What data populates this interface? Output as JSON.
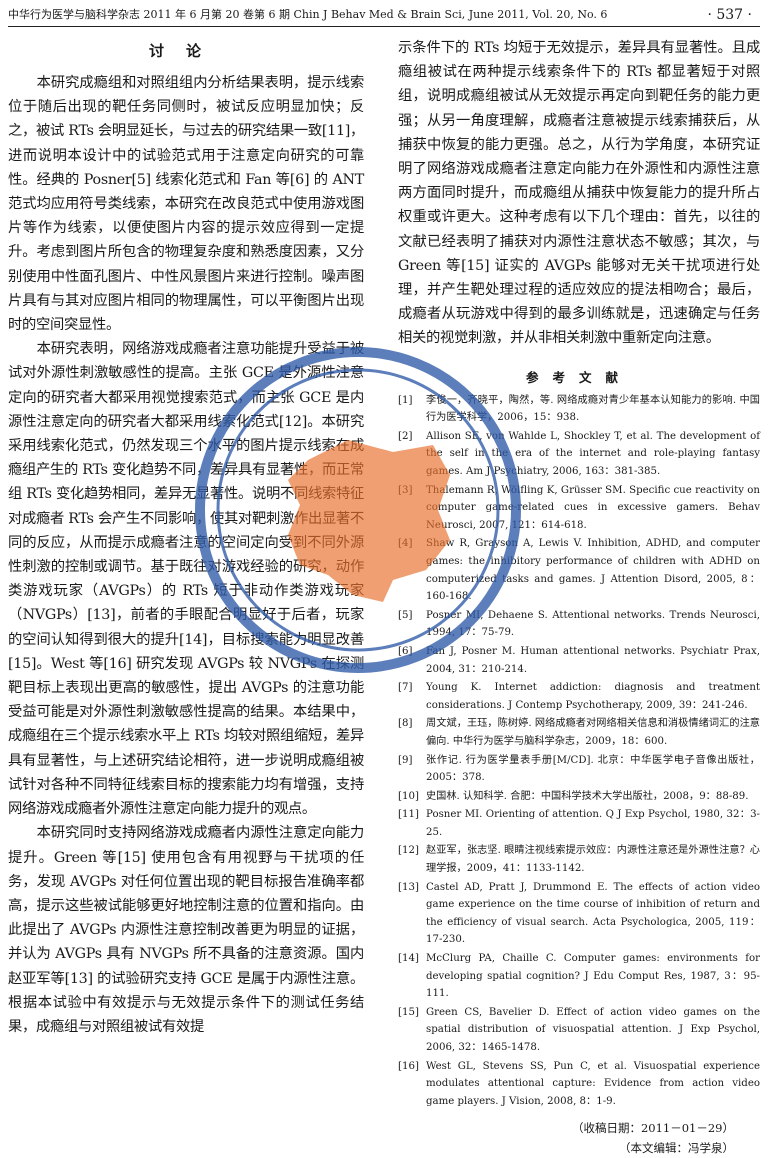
{
  "header": {
    "journal_line": "中华行为医学与脑科学杂志 2011 年 6 月第 20 卷第 6 期   Chin J Behav Med & Brain Sci, June 2011, Vol. 20, No. 6",
    "page_number": "· 537 ·"
  },
  "discussion": {
    "title": "讨论",
    "left_paragraphs": [
      "本研究成瘾组和对照组组内分析结果表明，提示线索位于随后出现的靶任务同侧时，被试反应明显加快；反之，被试 RTs 会明显延长，与过去的研究结果一致[11]，进而说明本设计中的试验范式用于注意定向研究的可靠性。经典的 Posner[5] 线索化范式和 Fan 等[6] 的 ANT 范式均应用符号类线索，本研究在改良范式中使用游戏图片等作为线索，以便使图片内容的提示效应得到一定提升。考虑到图片所包含的物理复杂度和熟悉度因素，又分别使用中性面孔图片、中性风景图片来进行控制。噪声图片具有与其对应图片相同的物理属性，可以平衡图片出现时的空间突显性。",
      "本研究表明，网络游戏成瘾者注意功能提升受益于被试对外源性刺激敏感性的提高。主张 GCE 是外源性注意定向的研究者大都采用视觉搜索范式，而主张 GCE 是内源性注意定向的研究者大都采用线索化范式[12]。本研究采用线索化范式，仍然发现三个水平的图片提示线索在成瘾组产生的 RTs 变化趋势不同，差异具有显著性，而正常组 RTs 变化趋势相同，差异无显著性。说明不同线索特征对成瘾者 RTs 会产生不同影响，使其对靶刺激作出显著不同的反应，从而提示成瘾者注意的空间定向受到不同外源性刺激的控制或调节。基于既往对游戏经验的研究，动作类游戏玩家（AVGPs）的 RTs 短于非动作类游戏玩家（NVGPs）[13]，前者的手眼配合明显好于后者，玩家的空间认知得到很大的提升[14]，目标搜索能力明显改善[15]。West 等[16] 研究发现 AVGPs 较 NVGPs 在探测靶目标上表现出更高的敏感性，提出 AVGPs 的注意功能受益可能是对外源性刺激敏感性提高的结果。本结果中，成瘾组在三个提示线索水平上 RTs 均较对照组缩短，差异具有显著性，与上述研究结论相符，进一步说明成瘾组被试针对各种不同特征线索目标的搜索能力均有增强，支持网络游戏成瘾者外源性注意定向能力提升的观点。",
      "本研究同时支持网络游戏成瘾者内源性注意定向能力提升。Green 等[15] 使用包含有用视野与干扰项的任务，发现 AVGPs 对任何位置出现的靶目标报告准确率都高，提示这些被试能够更好地控制注意的位置和指向。由此提出了 AVGPs 内源性注意控制改善更为明显的证据，并认为 AVGPs 具有 NVGPs 所不具备的注意资源。国内赵亚军等[13] 的试验研究支持 GCE 是属于内源性注意。根据本试验中有效提示与无效提示条件下的测试任务结果，成瘾组与对照组被试有效提"
    ],
    "right_paragraph": "示条件下的 RTs 均短于无效提示，差异具有显著性。且成瘾组被试在两种提示线索条件下的 RTs 都显著短于对照组，说明成瘾组被试从无效提示再定向到靶任务的能力更强；从另一角度理解，成瘾者注意被提示线索捕获后，从捕获中恢复的能力更强。总之，从行为学角度，本研究证明了网络游戏成瘾者注意定向能力在外源性和内源性注意两方面同时提升，而成瘾组从捕获中恢复能力的提升所占权重或许更大。这种考虑有以下几个理由：首先，以往的文献已经表明了捕获对内源性注意状态不敏感；其次，与 Green 等[15] 证实的 AVGPs 能够对无关干扰项进行处理，并产生靶处理过程的适应效应的提法相吻合；最后，成瘾者从玩游戏中得到的最多训练就是，迅速确定与任务相关的视觉刺激，并从非相关刺激中重新定向注意。"
  },
  "references": {
    "title": "参考文献",
    "items": [
      {
        "num": "[1]",
        "text": "李俊一，齐晓平，陶然，等. 网络成瘾对青少年基本认知能力的影响. 中国行为医学科学，2006，15：938."
      },
      {
        "num": "[2]",
        "text": "Allison SE, von Wahlde L, Shockley T, et al. The development of the self in the era of the internet and role-playing fantasy games. Am J Psychiatry, 2006, 163：381-385."
      },
      {
        "num": "[3]",
        "text": "Thalemann R, Wölfling K, Grüsser SM. Specific cue reactivity on computer game-related cues in excessive gamers. Behav Neurosci, 2007, 121：614-618."
      },
      {
        "num": "[4]",
        "text": "Shaw R, Grayson A, Lewis V. Inhibition, ADHD, and computer games: the inhibitory performance of children with ADHD on computerized tasks and games. J Attention Disord, 2005, 8：160-168."
      },
      {
        "num": "[5]",
        "text": "Posner MI, Dehaene S. Attentional networks. Trends Neurosci, 1994, 17：75-79."
      },
      {
        "num": "[6]",
        "text": "Fan J, Posner M. Human attentional networks. Psychiatr Prax, 2004, 31：210-214."
      },
      {
        "num": "[7]",
        "text": "Young K. Internet addiction: diagnosis and treatment considerations. J Contemp Psychotherapy, 2009, 39：241-246."
      },
      {
        "num": "[8]",
        "text": "周文斌，王珏，陈树婷. 网络成瘾者对网络相关信息和消极情绪词汇的注意偏向. 中华行为医学与脑科学杂志，2009，18：600."
      },
      {
        "num": "[9]",
        "text": "张作记. 行为医学量表手册[M/CD]. 北京：中华医学电子音像出版社，2005：378."
      },
      {
        "num": "[10]",
        "text": "史国林. 认知科学. 合肥：中国科学技术大学出版社，2008，9：88-89."
      },
      {
        "num": "[11]",
        "text": "Posner MI. Orienting of attention. Q J Exp Psychol, 1980, 32：3-25."
      },
      {
        "num": "[12]",
        "text": "赵亚军，张志坚. 眼睛注视线索提示效应：内源性注意还是外源性注意？心理学报，2009，41：1133-1142."
      },
      {
        "num": "[13]",
        "text": "Castel AD, Pratt J, Drummond E. The effects of action video game experience on the time course of inhibition of return and the efficiency of visual search. Acta Psychologica, 2005, 119：17-230."
      },
      {
        "num": "[14]",
        "text": "McClurg PA, Chaille C. Computer games: environments for developing spatial cognition? J Edu Comput Res, 1987, 3：95-111."
      },
      {
        "num": "[15]",
        "text": "Green CS, Bavelier D. Effect of action video games on the spatial distribution of visuospatial attention. J Exp Psychol, 2006, 32：1465-1478."
      },
      {
        "num": "[16]",
        "text": "West GL, Stevens SS, Pun C, et al. Visuospatial experience modulates attentional capture: Evidence from action video game players. J Vision, 2008, 8：1-9."
      }
    ]
  },
  "footer": {
    "received": "（收稿日期：2011－01－29）",
    "editor": "（本文编辑：冯学泉）"
  },
  "seal": {
    "outer_color": "#2f5aa8",
    "map_color": "#e8702a",
    "glyph_color": "#1f4fa0"
  }
}
